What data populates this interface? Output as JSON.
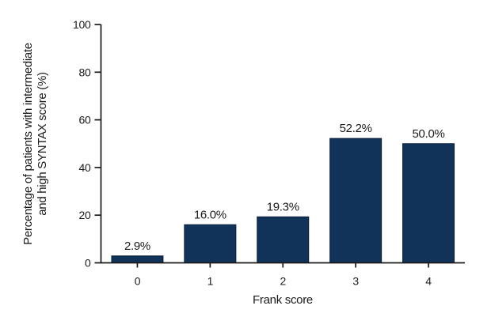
{
  "figure": {
    "background": "#ffffff"
  },
  "chart_data": {
    "type": "bar",
    "categories": [
      "0",
      "1",
      "2",
      "3",
      "4"
    ],
    "values": [
      2.9,
      16.0,
      19.3,
      52.2,
      50.0
    ],
    "bar_labels": [
      "2.9%",
      "16.0%",
      "19.3%",
      "52.2%",
      "50.0%"
    ],
    "xlabel": "Frank score",
    "ylabel": "Percentage of patients with intermediate and high SYNTAX score (%)",
    "ylabel_lines": [
      "Percentage of patients with intermediate",
      "and high SYNTAX score (%)"
    ],
    "ylim": [
      0,
      100
    ],
    "yticks": [
      0,
      20,
      40,
      60,
      80,
      100
    ],
    "grid": false,
    "legend": null,
    "bar_color": "#113259",
    "bar_edge_color": "#0a1f38",
    "axis_color": "#1a1a1a",
    "text_color": "#1a1a1a"
  }
}
